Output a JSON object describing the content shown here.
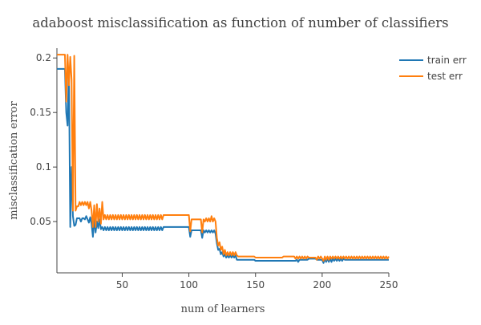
{
  "chart_data": {
    "type": "line",
    "title": "adaboost misclassification as function of number of classifiers",
    "xlabel": "num of learners",
    "ylabel": "misclassification error",
    "xlim": [
      1,
      250
    ],
    "ylim": [
      0.003,
      0.209
    ],
    "x_ticks": [
      50,
      100,
      150,
      200,
      250
    ],
    "y_ticks": [
      0.05,
      0.1,
      0.15,
      0.2
    ],
    "x_tick_labels": [
      "50",
      "100",
      "150",
      "200",
      "250"
    ],
    "y_tick_labels": [
      "0.05",
      "0.1",
      "0.15",
      "0.2"
    ],
    "legend_position": "top-right",
    "grid": false,
    "series": [
      {
        "name": "train err",
        "color": "#1f77b4",
        "points": [
          [
            1,
            0.19
          ],
          [
            7,
            0.19
          ],
          [
            8,
            0.15
          ],
          [
            9,
            0.138
          ],
          [
            10,
            0.19
          ],
          [
            11,
            0.045
          ],
          [
            12,
            0.1
          ],
          [
            13,
            0.055
          ],
          [
            14,
            0.046
          ],
          [
            15,
            0.047
          ],
          [
            16,
            0.053
          ],
          [
            17,
            0.053
          ],
          [
            18,
            0.053
          ],
          [
            19,
            0.05
          ],
          [
            20,
            0.053
          ],
          [
            21,
            0.053
          ],
          [
            22,
            0.052
          ],
          [
            23,
            0.055
          ],
          [
            24,
            0.052
          ],
          [
            25,
            0.049
          ],
          [
            26,
            0.054
          ],
          [
            27,
            0.048
          ],
          [
            28,
            0.036
          ],
          [
            29,
            0.052
          ],
          [
            30,
            0.04
          ],
          [
            31,
            0.05
          ],
          [
            32,
            0.044
          ],
          [
            33,
            0.052
          ],
          [
            34,
            0.043
          ],
          [
            35,
            0.045
          ],
          [
            36,
            0.042
          ],
          [
            37,
            0.045
          ],
          [
            38,
            0.042
          ],
          [
            39,
            0.045
          ],
          [
            40,
            0.042
          ],
          [
            41,
            0.045
          ],
          [
            42,
            0.042
          ],
          [
            43,
            0.045
          ],
          [
            44,
            0.042
          ],
          [
            45,
            0.045
          ],
          [
            46,
            0.042
          ],
          [
            47,
            0.045
          ],
          [
            48,
            0.042
          ],
          [
            49,
            0.045
          ],
          [
            50,
            0.042
          ],
          [
            51,
            0.045
          ],
          [
            52,
            0.042
          ],
          [
            53,
            0.045
          ],
          [
            54,
            0.042
          ],
          [
            55,
            0.045
          ],
          [
            56,
            0.042
          ],
          [
            57,
            0.045
          ],
          [
            58,
            0.042
          ],
          [
            59,
            0.045
          ],
          [
            60,
            0.042
          ],
          [
            61,
            0.045
          ],
          [
            62,
            0.042
          ],
          [
            63,
            0.045
          ],
          [
            64,
            0.042
          ],
          [
            65,
            0.045
          ],
          [
            66,
            0.042
          ],
          [
            67,
            0.045
          ],
          [
            68,
            0.042
          ],
          [
            69,
            0.045
          ],
          [
            70,
            0.042
          ],
          [
            71,
            0.045
          ],
          [
            72,
            0.042
          ],
          [
            73,
            0.045
          ],
          [
            74,
            0.042
          ],
          [
            75,
            0.045
          ],
          [
            76,
            0.042
          ],
          [
            77,
            0.045
          ],
          [
            78,
            0.042
          ],
          [
            79,
            0.045
          ],
          [
            80,
            0.042
          ],
          [
            81,
            0.045
          ],
          [
            82,
            0.045
          ],
          [
            100,
            0.045
          ],
          [
            101,
            0.036
          ],
          [
            102,
            0.042
          ],
          [
            109,
            0.042
          ],
          [
            110,
            0.035
          ],
          [
            111,
            0.042
          ],
          [
            112,
            0.04
          ],
          [
            113,
            0.042
          ],
          [
            114,
            0.04
          ],
          [
            115,
            0.042
          ],
          [
            116,
            0.04
          ],
          [
            117,
            0.042
          ],
          [
            118,
            0.04
          ],
          [
            119,
            0.042
          ],
          [
            120,
            0.039
          ],
          [
            121,
            0.03
          ],
          [
            122,
            0.024
          ],
          [
            123,
            0.025
          ],
          [
            124,
            0.02
          ],
          [
            125,
            0.022
          ],
          [
            126,
            0.018
          ],
          [
            127,
            0.02
          ],
          [
            128,
            0.017
          ],
          [
            129,
            0.019
          ],
          [
            130,
            0.017
          ],
          [
            131,
            0.019
          ],
          [
            132,
            0.017
          ],
          [
            133,
            0.019
          ],
          [
            134,
            0.017
          ],
          [
            135,
            0.019
          ],
          [
            136,
            0.015
          ],
          [
            149,
            0.015
          ],
          [
            150,
            0.014
          ],
          [
            180,
            0.014
          ],
          [
            181,
            0.015
          ],
          [
            182,
            0.013
          ],
          [
            183,
            0.015
          ],
          [
            189,
            0.015
          ],
          [
            190,
            0.016
          ],
          [
            195,
            0.016
          ],
          [
            196,
            0.015
          ],
          [
            200,
            0.015
          ],
          [
            201,
            0.012
          ],
          [
            202,
            0.016
          ],
          [
            203,
            0.013
          ],
          [
            204,
            0.016
          ],
          [
            205,
            0.013
          ],
          [
            206,
            0.016
          ],
          [
            207,
            0.013
          ],
          [
            208,
            0.016
          ],
          [
            209,
            0.014
          ],
          [
            210,
            0.016
          ],
          [
            211,
            0.014
          ],
          [
            212,
            0.016
          ],
          [
            213,
            0.014
          ],
          [
            214,
            0.016
          ],
          [
            215,
            0.014
          ],
          [
            216,
            0.016
          ],
          [
            217,
            0.015
          ],
          [
            250,
            0.015
          ]
        ]
      },
      {
        "name": "test err",
        "color": "#ff7f0e",
        "points": [
          [
            1,
            0.203
          ],
          [
            7,
            0.203
          ],
          [
            8,
            0.16
          ],
          [
            9,
            0.203
          ],
          [
            10,
            0.175
          ],
          [
            11,
            0.201
          ],
          [
            12,
            0.18
          ],
          [
            13,
            0.06
          ],
          [
            14,
            0.202
          ],
          [
            15,
            0.06
          ],
          [
            16,
            0.064
          ],
          [
            17,
            0.064
          ],
          [
            18,
            0.068
          ],
          [
            19,
            0.065
          ],
          [
            20,
            0.068
          ],
          [
            21,
            0.065
          ],
          [
            22,
            0.068
          ],
          [
            23,
            0.065
          ],
          [
            24,
            0.068
          ],
          [
            25,
            0.062
          ],
          [
            26,
            0.068
          ],
          [
            27,
            0.06
          ],
          [
            28,
            0.045
          ],
          [
            29,
            0.065
          ],
          [
            30,
            0.045
          ],
          [
            31,
            0.066
          ],
          [
            32,
            0.05
          ],
          [
            33,
            0.062
          ],
          [
            34,
            0.048
          ],
          [
            35,
            0.068
          ],
          [
            36,
            0.052
          ],
          [
            37,
            0.056
          ],
          [
            38,
            0.052
          ],
          [
            39,
            0.056
          ],
          [
            40,
            0.052
          ],
          [
            41,
            0.056
          ],
          [
            42,
            0.052
          ],
          [
            43,
            0.056
          ],
          [
            44,
            0.052
          ],
          [
            45,
            0.056
          ],
          [
            46,
            0.052
          ],
          [
            47,
            0.056
          ],
          [
            48,
            0.052
          ],
          [
            49,
            0.056
          ],
          [
            50,
            0.052
          ],
          [
            51,
            0.056
          ],
          [
            52,
            0.052
          ],
          [
            53,
            0.056
          ],
          [
            54,
            0.052
          ],
          [
            55,
            0.056
          ],
          [
            56,
            0.052
          ],
          [
            57,
            0.056
          ],
          [
            58,
            0.052
          ],
          [
            59,
            0.056
          ],
          [
            60,
            0.052
          ],
          [
            61,
            0.056
          ],
          [
            62,
            0.052
          ],
          [
            63,
            0.056
          ],
          [
            64,
            0.052
          ],
          [
            65,
            0.056
          ],
          [
            66,
            0.052
          ],
          [
            67,
            0.056
          ],
          [
            68,
            0.052
          ],
          [
            69,
            0.056
          ],
          [
            70,
            0.052
          ],
          [
            71,
            0.056
          ],
          [
            72,
            0.052
          ],
          [
            73,
            0.056
          ],
          [
            74,
            0.052
          ],
          [
            75,
            0.056
          ],
          [
            76,
            0.052
          ],
          [
            77,
            0.056
          ],
          [
            78,
            0.052
          ],
          [
            79,
            0.056
          ],
          [
            80,
            0.052
          ],
          [
            81,
            0.056
          ],
          [
            82,
            0.056
          ],
          [
            100,
            0.056
          ],
          [
            101,
            0.041
          ],
          [
            102,
            0.052
          ],
          [
            109,
            0.052
          ],
          [
            110,
            0.04
          ],
          [
            111,
            0.052
          ],
          [
            112,
            0.05
          ],
          [
            113,
            0.053
          ],
          [
            114,
            0.05
          ],
          [
            115,
            0.053
          ],
          [
            116,
            0.05
          ],
          [
            117,
            0.055
          ],
          [
            118,
            0.05
          ],
          [
            119,
            0.053
          ],
          [
            120,
            0.05
          ],
          [
            121,
            0.035
          ],
          [
            122,
            0.028
          ],
          [
            123,
            0.031
          ],
          [
            124,
            0.024
          ],
          [
            125,
            0.027
          ],
          [
            126,
            0.02
          ],
          [
            127,
            0.024
          ],
          [
            128,
            0.019
          ],
          [
            129,
            0.022
          ],
          [
            130,
            0.019
          ],
          [
            131,
            0.022
          ],
          [
            132,
            0.019
          ],
          [
            133,
            0.022
          ],
          [
            134,
            0.019
          ],
          [
            135,
            0.022
          ],
          [
            136,
            0.019
          ],
          [
            137,
            0.018
          ],
          [
            149,
            0.018
          ],
          [
            150,
            0.017
          ],
          [
            170,
            0.017
          ],
          [
            171,
            0.018
          ],
          [
            179,
            0.018
          ],
          [
            180,
            0.016
          ],
          [
            181,
            0.018
          ],
          [
            182,
            0.016
          ],
          [
            183,
            0.018
          ],
          [
            184,
            0.016
          ],
          [
            185,
            0.018
          ],
          [
            186,
            0.016
          ],
          [
            187,
            0.018
          ],
          [
            188,
            0.016
          ],
          [
            189,
            0.018
          ],
          [
            190,
            0.017
          ],
          [
            195,
            0.017
          ],
          [
            196,
            0.015
          ],
          [
            197,
            0.018
          ],
          [
            198,
            0.016
          ],
          [
            199,
            0.018
          ],
          [
            200,
            0.016
          ],
          [
            201,
            0.014
          ],
          [
            202,
            0.018
          ],
          [
            203,
            0.015
          ],
          [
            204,
            0.018
          ],
          [
            205,
            0.015
          ],
          [
            206,
            0.018
          ],
          [
            207,
            0.016
          ],
          [
            208,
            0.018
          ],
          [
            209,
            0.016
          ],
          [
            210,
            0.018
          ],
          [
            211,
            0.016
          ],
          [
            212,
            0.018
          ],
          [
            213,
            0.016
          ],
          [
            214,
            0.018
          ],
          [
            215,
            0.016
          ],
          [
            216,
            0.018
          ],
          [
            217,
            0.016
          ],
          [
            218,
            0.018
          ],
          [
            219,
            0.016
          ],
          [
            220,
            0.018
          ],
          [
            221,
            0.016
          ],
          [
            222,
            0.018
          ],
          [
            223,
            0.016
          ],
          [
            224,
            0.018
          ],
          [
            225,
            0.016
          ],
          [
            226,
            0.018
          ],
          [
            227,
            0.016
          ],
          [
            228,
            0.018
          ],
          [
            229,
            0.016
          ],
          [
            230,
            0.018
          ],
          [
            231,
            0.016
          ],
          [
            232,
            0.018
          ],
          [
            233,
            0.016
          ],
          [
            234,
            0.018
          ],
          [
            235,
            0.016
          ],
          [
            236,
            0.018
          ],
          [
            237,
            0.016
          ],
          [
            238,
            0.018
          ],
          [
            239,
            0.016
          ],
          [
            240,
            0.018
          ],
          [
            241,
            0.016
          ],
          [
            242,
            0.018
          ],
          [
            243,
            0.016
          ],
          [
            244,
            0.018
          ],
          [
            245,
            0.016
          ],
          [
            246,
            0.018
          ],
          [
            247,
            0.016
          ],
          [
            248,
            0.018
          ],
          [
            249,
            0.016
          ],
          [
            250,
            0.018
          ]
        ]
      }
    ]
  }
}
